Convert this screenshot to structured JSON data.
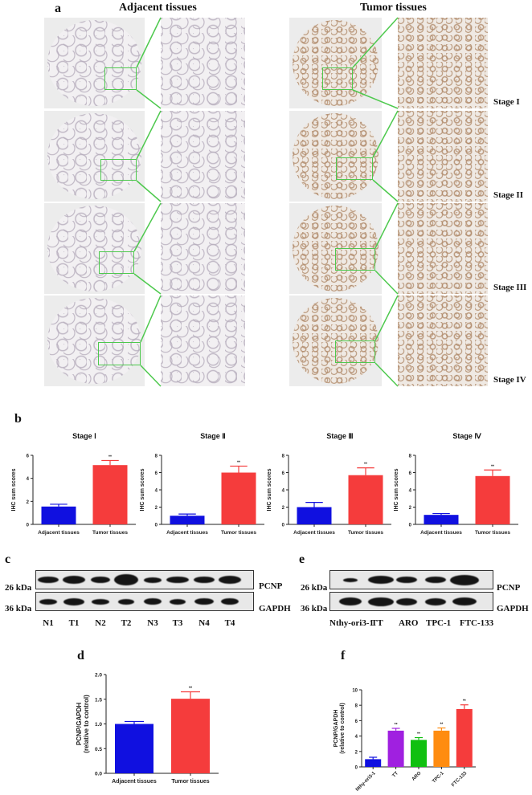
{
  "panel_a": {
    "label": "a",
    "headers": {
      "adjacent": "Adjacent tissues",
      "tumor": "Tumor tissues"
    },
    "stages": [
      "Stage I",
      "Stage II",
      "Stage III",
      "Stage IV"
    ],
    "colors": {
      "inset_box": "#4ec94e",
      "adjacent_stain": "#b7aebd",
      "tumor_stain": "#b08a6a"
    }
  },
  "panel_b": {
    "label": "b",
    "charts": [
      {
        "title": "Stage Ⅰ"
      },
      {
        "title": "Stage Ⅱ"
      },
      {
        "title": "Stage Ⅲ"
      },
      {
        "title": "Stage Ⅳ"
      }
    ]
  },
  "panel_c": {
    "label": "c",
    "rows": [
      {
        "kda": "26 kDa",
        "protein": "PCNP"
      },
      {
        "kda": "36 kDa",
        "protein": "GAPDH"
      }
    ],
    "lanes": [
      "N1",
      "T1",
      "N2",
      "T2",
      "N3",
      "T3",
      "N4",
      "T4"
    ]
  },
  "panel_d": {
    "label": "d"
  },
  "panel_e": {
    "label": "e",
    "rows": [
      {
        "kda": "26 kDa",
        "protein": "PCNP"
      },
      {
        "kda": "36 kDa",
        "protein": "GAPDH"
      }
    ],
    "lanes": [
      "Nthy-ori3-1",
      "TT",
      "ARO",
      "TPC-1",
      "FTC-133"
    ]
  },
  "panel_f": {
    "label": "f"
  },
  "chart_data": [
    {
      "type": "bar",
      "title": "Stage Ⅰ",
      "categories": [
        "Adjacent tissues",
        "Tumor tissues"
      ],
      "values": [
        1.55,
        5.15
      ],
      "errors": [
        0.2,
        0.4
      ],
      "colors": [
        "#1010e0",
        "#f53c3c"
      ],
      "significance": [
        "",
        "**"
      ],
      "xlabel": "",
      "ylabel": "IHC sum scores",
      "ylim": [
        0,
        6
      ],
      "yticks": [
        0,
        2,
        4,
        6
      ]
    },
    {
      "type": "bar",
      "title": "Stage Ⅱ",
      "categories": [
        "Adjacent tissues",
        "Tumor tissues"
      ],
      "values": [
        1.0,
        6.0
      ],
      "errors": [
        0.2,
        0.75
      ],
      "colors": [
        "#1010e0",
        "#f53c3c"
      ],
      "significance": [
        "",
        "**"
      ],
      "xlabel": "",
      "ylabel": "IHC sum scores",
      "ylim": [
        0,
        8
      ],
      "yticks": [
        0,
        2,
        4,
        6,
        8
      ]
    },
    {
      "type": "bar",
      "title": "Stage Ⅲ",
      "categories": [
        "Adjacent tissues",
        "Tumor tissues"
      ],
      "values": [
        2.0,
        5.7
      ],
      "errors": [
        0.55,
        0.85
      ],
      "colors": [
        "#1010e0",
        "#f53c3c"
      ],
      "significance": [
        "",
        "**"
      ],
      "xlabel": "",
      "ylabel": "IHC sum scores",
      "ylim": [
        0,
        8
      ],
      "yticks": [
        0,
        2,
        4,
        6,
        8
      ]
    },
    {
      "type": "bar",
      "title": "Stage Ⅳ",
      "categories": [
        "Adjacent tissues",
        "Tumor tissues"
      ],
      "values": [
        1.1,
        5.6
      ],
      "errors": [
        0.15,
        0.7
      ],
      "colors": [
        "#1010e0",
        "#f53c3c"
      ],
      "significance": [
        "",
        "**"
      ],
      "xlabel": "",
      "ylabel": "IHC sum scores",
      "ylim": [
        0,
        8
      ],
      "yticks": [
        0,
        2,
        4,
        6,
        8
      ]
    },
    {
      "type": "bar",
      "title": "",
      "categories": [
        "Adjacent tissues",
        "Tumor tissues"
      ],
      "values": [
        1.0,
        1.51
      ],
      "errors": [
        0.05,
        0.14
      ],
      "colors": [
        "#1010e0",
        "#f53c3c"
      ],
      "significance": [
        "",
        "**"
      ],
      "xlabel": "",
      "ylabel": "PCNP/GAPDH\n(relative to control)",
      "ylim": [
        0,
        2.0
      ],
      "yticks": [
        0.0,
        0.5,
        1.0,
        1.5,
        2.0
      ]
    },
    {
      "type": "bar",
      "title": "",
      "categories": [
        "Nthy-ori3-1",
        "TT",
        "ARO",
        "TPC-1",
        "FTC-133"
      ],
      "values": [
        1.0,
        4.7,
        3.5,
        4.7,
        7.5
      ],
      "errors": [
        0.25,
        0.3,
        0.3,
        0.35,
        0.55
      ],
      "colors": [
        "#1010e0",
        "#a020e0",
        "#10c010",
        "#ff8c10",
        "#f53c3c"
      ],
      "significance": [
        "",
        "**",
        "**",
        "**",
        "**"
      ],
      "xlabel": "",
      "ylabel": "PCNP/GAPDH\n(relative to control)",
      "ylim": [
        0,
        10
      ],
      "yticks": [
        0,
        2,
        4,
        6,
        8,
        10
      ]
    }
  ]
}
